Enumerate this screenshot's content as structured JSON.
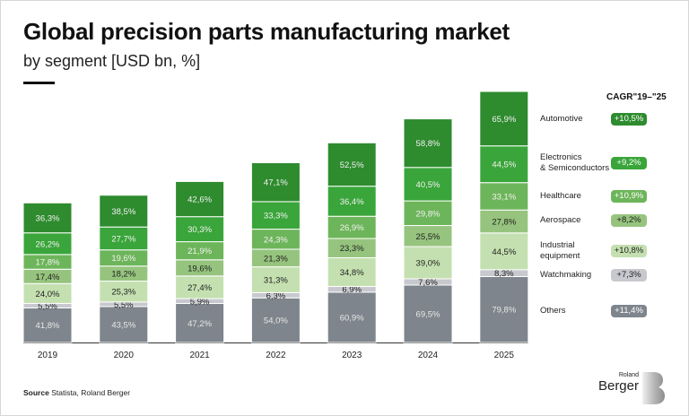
{
  "header": {
    "title": "Global precision parts manufacturing market",
    "subtitle": "by segment [USD bn, %]"
  },
  "legend": {
    "cagr_header": "CAGR\"19–\"25",
    "items": [
      {
        "label_lines": [
          "Automotive"
        ],
        "cagr": "+10,5%",
        "badge_color": "#2e8b2e",
        "text_color": "#ffffff"
      },
      {
        "label_lines": [
          "Electronics",
          "& Semiconductors"
        ],
        "cagr": "+9,2%",
        "badge_color": "#3aa53a",
        "text_color": "#ffffff"
      },
      {
        "label_lines": [
          "Healthcare"
        ],
        "cagr": "+10,9%",
        "badge_color": "#6db55a",
        "text_color": "#ffffff"
      },
      {
        "label_lines": [
          "Aerospace"
        ],
        "cagr": "+8,2%",
        "badge_color": "#96c47e",
        "text_color": "#1f1f1f"
      },
      {
        "label_lines": [
          "Industrial",
          "equipment"
        ],
        "cagr": "+10,8%",
        "badge_color": "#c4e0b0",
        "text_color": "#1f1f1f"
      },
      {
        "label_lines": [
          "Watchmaking"
        ],
        "cagr": "+7,3%",
        "badge_color": "#c7c9ce",
        "text_color": "#1f1f1f"
      },
      {
        "label_lines": [
          "Others"
        ],
        "cagr": "+11,4%",
        "badge_color": "#7e858c",
        "text_color": "#ffffff"
      }
    ]
  },
  "chart_data": {
    "type": "bar",
    "stacked": true,
    "title": "Global precision parts manufacturing market",
    "subtitle": "by segment [USD bn, %]",
    "xlabel": "",
    "ylabel": "",
    "categories": [
      "2019",
      "2020",
      "2021",
      "2022",
      "2023",
      "2024",
      "2025"
    ],
    "series": [
      {
        "name": "Others",
        "color": "#7e858c",
        "label_color": "#e8e8e8",
        "values": [
          41.8,
          43.5,
          47.2,
          54.0,
          60.9,
          69.5,
          79.8
        ],
        "labels": [
          "41,8%",
          "43,5%",
          "47,2%",
          "54,0%",
          "60,9%",
          "69,5%",
          "79,8%"
        ]
      },
      {
        "name": "Watchmaking",
        "color": "#c7c9ce",
        "label_color": "#1f1f1f",
        "values": [
          5.5,
          5.5,
          5.9,
          6.3,
          6.9,
          7.6,
          8.3
        ],
        "labels": [
          "5,5%",
          "5,5%",
          "5,9%",
          "6,3%",
          "6,9%",
          "7,6%",
          "8,3%"
        ]
      },
      {
        "name": "Industrial equipment",
        "color": "#c4e0b0",
        "label_color": "#1f1f1f",
        "values": [
          24.0,
          25.3,
          27.4,
          31.3,
          34.8,
          39.0,
          44.5
        ],
        "labels": [
          "24,0%",
          "25,3%",
          "27,4%",
          "31,3%",
          "34,8%",
          "39,0%",
          "44,5%"
        ]
      },
      {
        "name": "Aerospace",
        "color": "#96c47e",
        "label_color": "#1f1f1f",
        "values": [
          17.4,
          18.2,
          19.6,
          21.3,
          23.3,
          25.5,
          27.8
        ],
        "labels": [
          "17,4%",
          "18,2%",
          "19,6%",
          "21,3%",
          "23,3%",
          "25,5%",
          "27,8%"
        ]
      },
      {
        "name": "Healthcare",
        "color": "#6db55a",
        "label_color": "#f2f2f2",
        "values": [
          17.8,
          19.6,
          21.9,
          24.3,
          26.9,
          29.8,
          33.1
        ],
        "labels": [
          "17,8%",
          "19,6%",
          "21,9%",
          "24,3%",
          "26,9%",
          "29,8%",
          "33,1%"
        ]
      },
      {
        "name": "Electronics & Semiconductors",
        "color": "#3aa53a",
        "label_color": "#f2f2f2",
        "values": [
          26.2,
          27.7,
          30.3,
          33.3,
          36.4,
          40.5,
          44.5
        ],
        "labels": [
          "26,2%",
          "27,7%",
          "30,3%",
          "33,3%",
          "36,4%",
          "40,5%",
          "44,5%"
        ]
      },
      {
        "name": "Automotive",
        "color": "#2e8b2e",
        "label_color": "#f2f2f2",
        "values": [
          36.3,
          38.5,
          42.6,
          47.1,
          52.5,
          58.8,
          65.9
        ],
        "labels": [
          "36,3%",
          "38,5%",
          "42,6%",
          "47,1%",
          "52,5%",
          "58,8%",
          "65,9%"
        ]
      }
    ],
    "grid": false,
    "legend_position": "right"
  },
  "footer": {
    "source_label": "Source",
    "source_text": " Statista, Roland Berger"
  },
  "logo": {
    "top_text": "Roland",
    "main_text": "Berger"
  }
}
